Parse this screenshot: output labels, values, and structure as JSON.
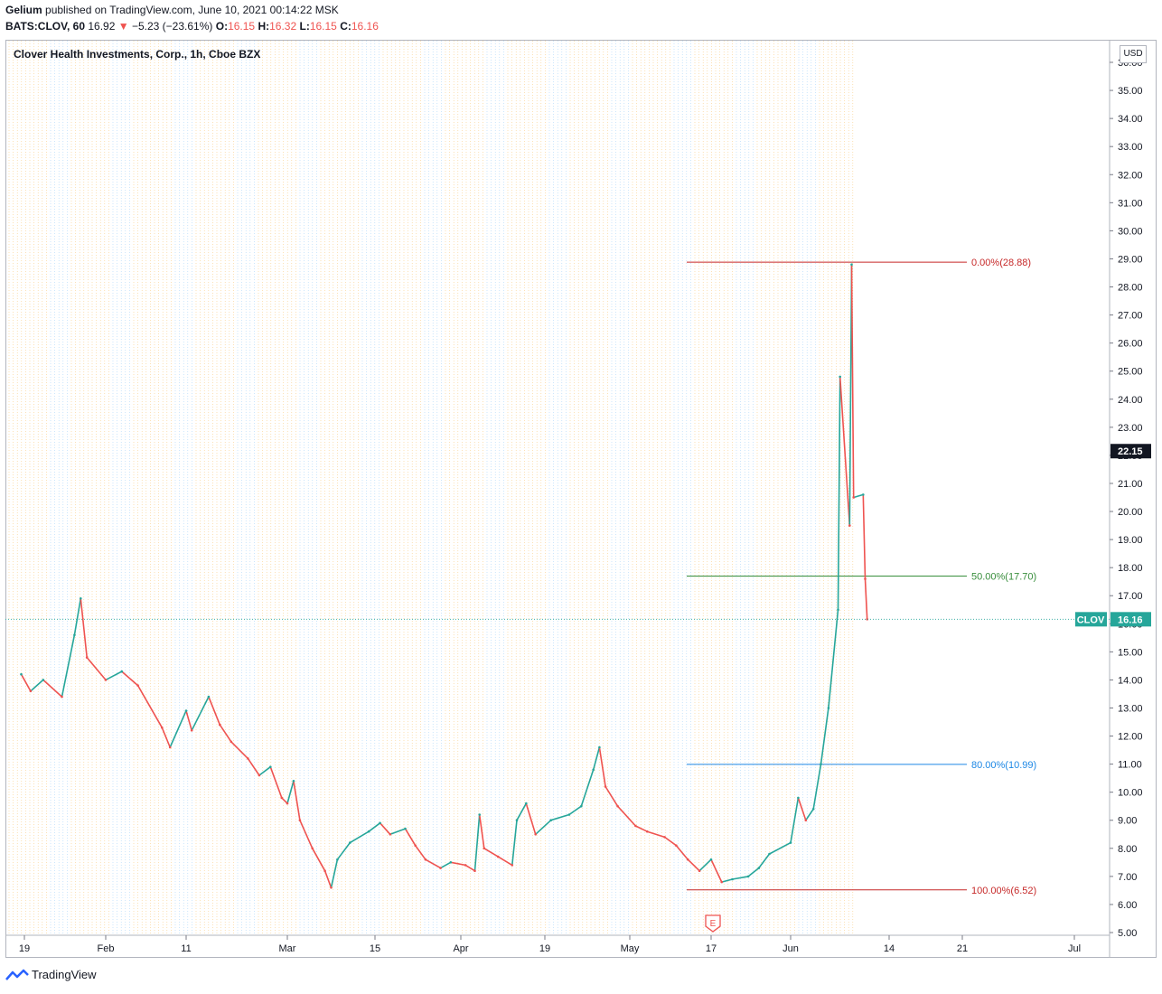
{
  "header": {
    "publisher": "Gelium",
    "published_text": "published on TradingView.com, June 10, 2021 00:14:22 MSK",
    "symbol": "BATS:CLOV, 60",
    "last": "16.92",
    "change_arrow": "▼",
    "change": "−5.23 (−23.61%)",
    "o_label": "O:",
    "o_value": "16.15",
    "h_label": "H:",
    "h_value": "16.32",
    "l_label": "L:",
    "l_value": "16.15",
    "c_label": "C:",
    "c_value": "16.16"
  },
  "chart_title": "Clover Health Investments, Corp., 1h, Cboe BZX",
  "currency_label": "USD",
  "footer": {
    "brand": "TradingView"
  },
  "colors": {
    "up": "#26a69a",
    "down": "#ef5350",
    "fib_0": "#c62828",
    "fib_50": "#388e3c",
    "fib_80": "#1e88e5",
    "fib_100": "#c62828",
    "price_tag": "#26a69a",
    "current_tag": "#131722",
    "session_orange": "#f5a623",
    "session_blue": "#64b5f6"
  },
  "chart_data": {
    "type": "line",
    "title": "Clover Health Investments, Corp., 1h, Cboe BZX",
    "symbol": "CLOV",
    "interval": "1h",
    "y_axis": {
      "min": 5.0,
      "max": 36.0,
      "ticks": [
        "5.00",
        "6.00",
        "7.00",
        "8.00",
        "9.00",
        "10.00",
        "11.00",
        "12.00",
        "13.00",
        "14.00",
        "15.00",
        "16.00",
        "17.00",
        "18.00",
        "19.00",
        "20.00",
        "21.00",
        "22.00",
        "23.00",
        "24.00",
        "25.00",
        "26.00",
        "27.00",
        "28.00",
        "29.00",
        "30.00",
        "31.00",
        "32.00",
        "33.00",
        "34.00",
        "35.00",
        "36.00"
      ],
      "unit": "USD"
    },
    "x_axis": {
      "ticks": [
        {
          "label": "19",
          "date": "2021-01-19"
        },
        {
          "label": "Feb",
          "date": "2021-02-01"
        },
        {
          "label": "11",
          "date": "2021-02-11"
        },
        {
          "label": "Mar",
          "date": "2021-03-01"
        },
        {
          "label": "15",
          "date": "2021-03-15"
        },
        {
          "label": "Apr",
          "date": "2021-04-01"
        },
        {
          "label": "19",
          "date": "2021-04-19"
        },
        {
          "label": "May",
          "date": "2021-05-03"
        },
        {
          "label": "17",
          "date": "2021-05-17"
        },
        {
          "label": "Jun",
          "date": "2021-06-01"
        },
        {
          "label": "14",
          "date": "2021-06-14"
        },
        {
          "label": "21",
          "date": "2021-06-21"
        },
        {
          "label": "Jul",
          "date": "2021-07-01"
        }
      ]
    },
    "price_series": [
      [
        "2021-01-18",
        14.2
      ],
      [
        "2021-01-20",
        13.6
      ],
      [
        "2021-01-22",
        14.0
      ],
      [
        "2021-01-25",
        13.4
      ],
      [
        "2021-01-27",
        15.6
      ],
      [
        "2021-01-28",
        16.9
      ],
      [
        "2021-01-29",
        14.8
      ],
      [
        "2021-02-01",
        14.0
      ],
      [
        "2021-02-03",
        14.3
      ],
      [
        "2021-02-05",
        13.8
      ],
      [
        "2021-02-08",
        12.3
      ],
      [
        "2021-02-09",
        11.6
      ],
      [
        "2021-02-11",
        12.9
      ],
      [
        "2021-02-12",
        12.2
      ],
      [
        "2021-02-15",
        13.4
      ],
      [
        "2021-02-17",
        12.4
      ],
      [
        "2021-02-19",
        11.8
      ],
      [
        "2021-02-22",
        11.2
      ],
      [
        "2021-02-24",
        10.6
      ],
      [
        "2021-02-26",
        10.9
      ],
      [
        "2021-02-28",
        9.8
      ],
      [
        "2021-03-01",
        9.6
      ],
      [
        "2021-03-02",
        10.4
      ],
      [
        "2021-03-03",
        9.0
      ],
      [
        "2021-03-05",
        8.0
      ],
      [
        "2021-03-07",
        7.2
      ],
      [
        "2021-03-08",
        6.6
      ],
      [
        "2021-03-09",
        7.6
      ],
      [
        "2021-03-11",
        8.2
      ],
      [
        "2021-03-14",
        8.6
      ],
      [
        "2021-03-16",
        8.9
      ],
      [
        "2021-03-18",
        8.5
      ],
      [
        "2021-03-21",
        8.7
      ],
      [
        "2021-03-23",
        8.1
      ],
      [
        "2021-03-25",
        7.6
      ],
      [
        "2021-03-28",
        7.3
      ],
      [
        "2021-03-30",
        7.5
      ],
      [
        "2021-04-02",
        7.4
      ],
      [
        "2021-04-04",
        7.2
      ],
      [
        "2021-04-05",
        9.2
      ],
      [
        "2021-04-06",
        8.0
      ],
      [
        "2021-04-09",
        7.7
      ],
      [
        "2021-04-12",
        7.4
      ],
      [
        "2021-04-13",
        9.0
      ],
      [
        "2021-04-15",
        9.6
      ],
      [
        "2021-04-17",
        8.5
      ],
      [
        "2021-04-20",
        9.0
      ],
      [
        "2021-04-23",
        9.2
      ],
      [
        "2021-04-25",
        9.5
      ],
      [
        "2021-04-27",
        10.8
      ],
      [
        "2021-04-28",
        11.6
      ],
      [
        "2021-04-29",
        10.2
      ],
      [
        "2021-05-01",
        9.5
      ],
      [
        "2021-05-04",
        8.8
      ],
      [
        "2021-05-06",
        8.6
      ],
      [
        "2021-05-09",
        8.4
      ],
      [
        "2021-05-11",
        8.1
      ],
      [
        "2021-05-13",
        7.6
      ],
      [
        "2021-05-15",
        7.2
      ],
      [
        "2021-05-17",
        7.6
      ],
      [
        "2021-05-19",
        6.8
      ],
      [
        "2021-05-21",
        6.9
      ],
      [
        "2021-05-24",
        7.0
      ],
      [
        "2021-05-26",
        7.3
      ],
      [
        "2021-05-28",
        7.8
      ],
      [
        "2021-06-01",
        8.2
      ],
      [
        "2021-06-02",
        9.8
      ],
      [
        "2021-06-03",
        9.0
      ],
      [
        "2021-06-04",
        9.4
      ],
      [
        "2021-06-05",
        11.0
      ],
      [
        "2021-06-06",
        13.0
      ],
      [
        "2021-06-07",
        16.5
      ],
      [
        "2021-06-07",
        24.8
      ],
      [
        "2021-06-08",
        19.5
      ],
      [
        "2021-06-08",
        28.8
      ],
      [
        "2021-06-08",
        20.5
      ],
      [
        "2021-06-09",
        20.6
      ],
      [
        "2021-06-09",
        17.6
      ],
      [
        "2021-06-09",
        16.16
      ]
    ],
    "fibonacci": [
      {
        "level": "0.00%",
        "value": 28.88,
        "label": "0.00%(28.88)"
      },
      {
        "level": "50.00%",
        "value": 17.7,
        "label": "50.00%(17.70)"
      },
      {
        "level": "80.00%",
        "value": 10.99,
        "label": "80.00%(10.99)"
      },
      {
        "level": "100.00%",
        "value": 6.52,
        "label": "100.00%(6.52)"
      }
    ],
    "price_tags": [
      {
        "label": "22.15",
        "value": 22.15
      },
      {
        "label": "CLOV",
        "value_label": "16.16",
        "value": 16.16
      }
    ],
    "event_marker": {
      "label": "E",
      "date": "2021-05-17"
    },
    "grid": false,
    "legend": "none"
  }
}
